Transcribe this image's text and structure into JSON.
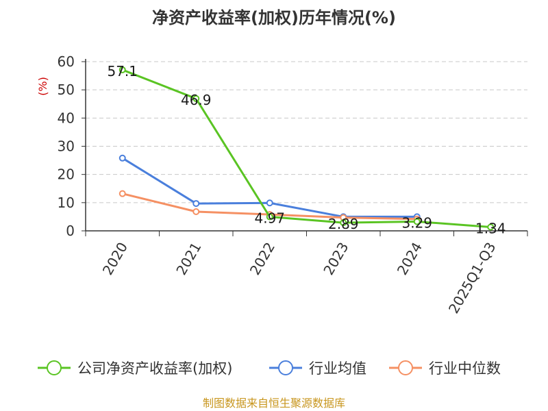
{
  "chart_data": {
    "type": "line",
    "title": "净资产收益率(加权)历年情况(%)",
    "ylabel": "(%)",
    "xlabel": "",
    "categories": [
      "2020",
      "2021",
      "2022",
      "2023",
      "2024",
      "2025Q1-Q3"
    ],
    "ylim": [
      0,
      60
    ],
    "yticks": [
      0,
      10,
      20,
      30,
      40,
      50,
      60
    ],
    "grid": "horizontal dashed",
    "legend_position": "bottom",
    "series": [
      {
        "name": "公司净资产收益率(加权)",
        "color": "#5ac423",
        "values": [
          57.1,
          46.9,
          4.97,
          2.89,
          3.29,
          1.34
        ],
        "labels": [
          "57.1",
          "46.9",
          "4.97",
          "2.89",
          "3.29",
          "1.34"
        ]
      },
      {
        "name": "行业均值",
        "color": "#4a7fdc",
        "values": [
          25.8,
          9.7,
          9.9,
          5.0,
          5.0,
          null
        ]
      },
      {
        "name": "行业中位数",
        "color": "#f59063",
        "values": [
          13.2,
          6.8,
          5.8,
          4.7,
          4.2,
          null
        ]
      }
    ]
  },
  "source": "制图数据来自恒生聚源数据库"
}
